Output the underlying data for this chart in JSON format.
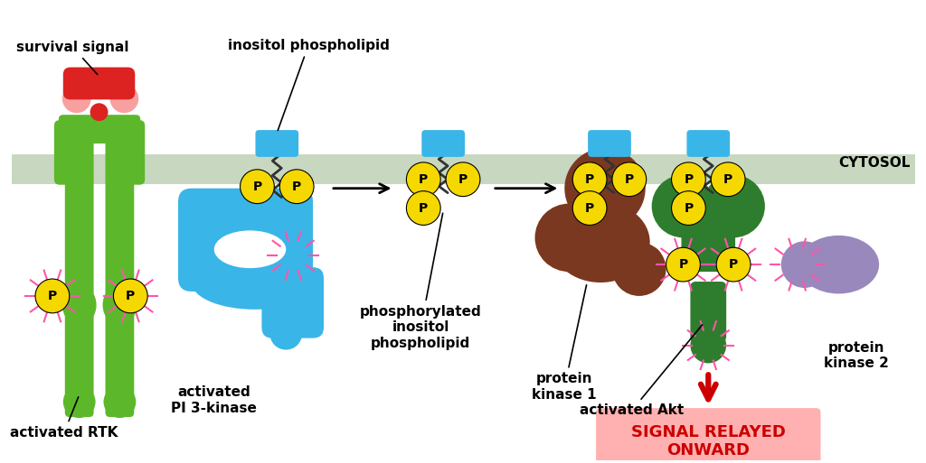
{
  "bg_color": "#ffffff",
  "mem_color": "#c8d8c0",
  "rtk_color": "#5cb82a",
  "pi3k_color": "#3ab5e8",
  "yellow_p": "#f5d800",
  "brown_pk1": "#7b3820",
  "green_akt": "#2e7d2e",
  "purple_pk2": "#9988bb",
  "red_arrow": "#cc0000",
  "signal_box_color": "#ffb0b0",
  "signal_text_color": "#cc0000",
  "pink_glow": "#ff55aa",
  "red_ligand": "#dd2222",
  "pink_ligand": "#f8a0a0",
  "text_color": "#000000",
  "cytosol_label": "CYTOSOL",
  "survival_label": "survival signal",
  "pi3k_label": "activated\nPI 3-kinase",
  "inositol_label": "inositol phospholipid",
  "phospho_label": "phosphorylated\ninositol\nphospholipid",
  "rtk_label": "activated RTK",
  "pk1_label": "protein\nkinase 1",
  "akt_label": "activated Akt",
  "pk2_label": "protein\nkinase 2",
  "signal_label": "SIGNAL RELAYED\nONWARD"
}
